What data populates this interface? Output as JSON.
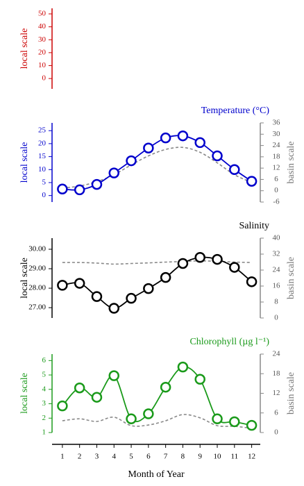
{
  "chart_data": [
    {
      "type": "line",
      "ylabel": "local scale",
      "color": "#cc0000",
      "ylim": [
        -8,
        54.3
      ],
      "yticks": [
        0,
        10,
        20,
        30,
        40,
        50
      ]
    },
    {
      "type": "line",
      "title": "Temperature (°C)",
      "ylabel": "local scale",
      "y2label": "basin scale",
      "color": "#0000cc",
      "ylim": [
        -2.5,
        28
      ],
      "yticks": [
        0,
        5,
        10,
        15,
        20,
        25
      ],
      "y2lim": [
        -6,
        36
      ],
      "y2ticks": [
        -6,
        0,
        6,
        12,
        18,
        24,
        30,
        36
      ],
      "x": [
        1,
        2,
        3,
        4,
        5,
        6,
        7,
        8,
        9,
        10,
        11,
        12
      ],
      "series": [
        {
          "color": "#0000cc",
          "values": [
            2.5,
            2.2,
            4.3,
            8.7,
            13.4,
            18.3,
            22.2,
            23.0,
            20.4,
            15.3,
            10.0,
            5.5
          ]
        },
        {
          "color": "#888888",
          "axis": "y2",
          "dashed": true,
          "values": [
            1.4,
            2.5,
            4.8,
            8.5,
            13.7,
            18.5,
            21.9,
            23.0,
            20.4,
            14.8,
            8.5,
            4.4
          ]
        }
      ]
    },
    {
      "type": "line",
      "title": "Salinity",
      "ylabel": "local scale",
      "y2label": "basin scale",
      "color": "#000000",
      "ylim": [
        26.47,
        30.57
      ],
      "yticks": [
        {
          "value": 27,
          "label": "27.00"
        },
        {
          "value": 28,
          "label": "28.00"
        },
        {
          "value": 29,
          "label": "29.00"
        },
        {
          "value": 30,
          "label": "30.00"
        }
      ],
      "y2lim": [
        0,
        40
      ],
      "y2ticks": [
        0,
        8,
        16,
        24,
        32,
        40
      ],
      "x": [
        1,
        2,
        3,
        4,
        5,
        6,
        7,
        8,
        9,
        10,
        11,
        12
      ],
      "series": [
        {
          "color": "#000000",
          "values": [
            28.15,
            28.25,
            27.57,
            26.97,
            27.48,
            27.98,
            28.55,
            29.27,
            29.58,
            29.48,
            29.07,
            28.33
          ]
        },
        {
          "color": "#888888",
          "axis": "y2",
          "dashed": true,
          "values": [
            27.8,
            27.8,
            27.5,
            27.0,
            27.3,
            27.6,
            28.0,
            28.3,
            28.6,
            28.4,
            28.0,
            27.8
          ]
        }
      ]
    },
    {
      "type": "line",
      "title": "Chlorophyll (µg l⁻¹)",
      "ylabel": "local scale",
      "y2label": "basin scale",
      "color": "#1a9a1a",
      "ylim": [
        1,
        6.45
      ],
      "yticks": [
        1,
        2,
        3,
        4,
        5,
        6
      ],
      "y2lim": [
        0,
        24
      ],
      "y2ticks": [
        0,
        6,
        12,
        18,
        24
      ],
      "x": [
        1,
        2,
        3,
        4,
        5,
        6,
        7,
        8,
        9,
        10,
        11,
        12
      ],
      "series": [
        {
          "color": "#1a9a1a",
          "values": [
            2.85,
            4.1,
            3.45,
            4.95,
            1.95,
            2.3,
            4.15,
            5.55,
            4.7,
            1.95,
            1.75,
            1.5
          ]
        },
        {
          "color": "#888888",
          "axis": "y2",
          "dashed": true,
          "values": [
            3.6,
            4.2,
            3.4,
            4.7,
            2.1,
            2.3,
            3.6,
            5.5,
            4.5,
            2.1,
            1.9,
            1.3
          ]
        }
      ],
      "xlabel": "Month of Year",
      "xlim": [
        0.4,
        12.5
      ],
      "xticks": [
        1,
        2,
        3,
        4,
        5,
        6,
        7,
        8,
        9,
        10,
        11,
        12
      ]
    }
  ]
}
